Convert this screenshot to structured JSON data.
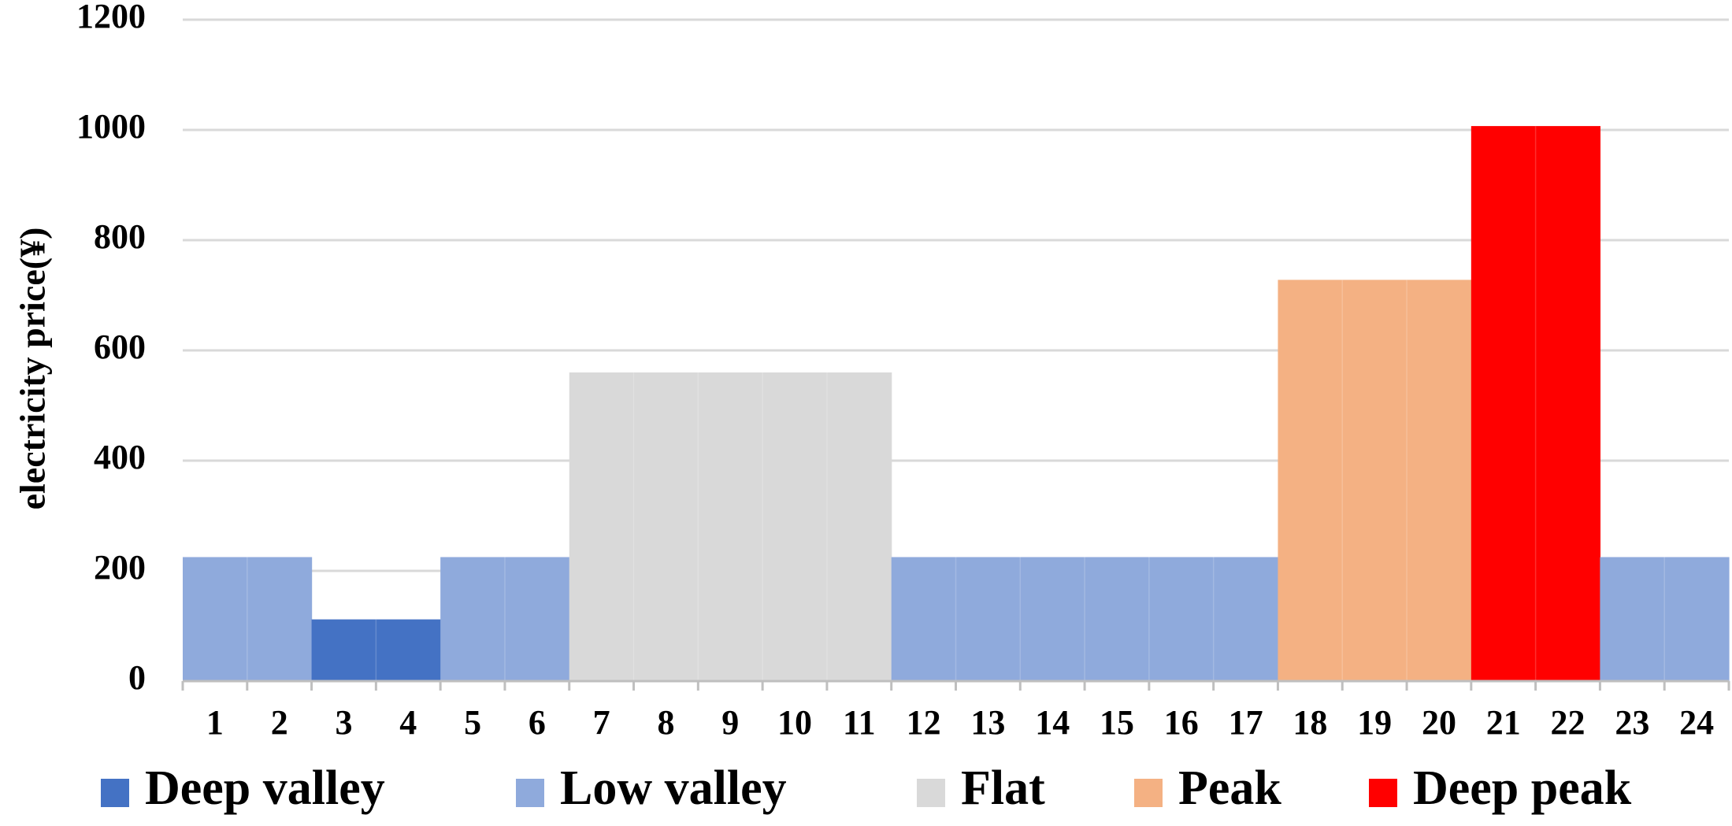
{
  "chart_data": {
    "type": "bar",
    "title": "",
    "xlabel": "",
    "ylabel": "electricity price(¥)",
    "ylim": [
      0,
      1200
    ],
    "yticks": [
      "0",
      "200",
      "400",
      "600",
      "800",
      "1000",
      "1200"
    ],
    "grid": true,
    "categories": [
      "1",
      "2",
      "3",
      "4",
      "5",
      "6",
      "7",
      "8",
      "9",
      "10",
      "11",
      "12",
      "13",
      "14",
      "15",
      "16",
      "17",
      "18",
      "19",
      "20",
      "21",
      "22",
      "23",
      "24"
    ],
    "values": [
      225,
      225,
      112,
      112,
      225,
      225,
      560,
      560,
      560,
      560,
      560,
      225,
      225,
      225,
      225,
      225,
      225,
      728,
      728,
      728,
      1007,
      1007,
      225,
      225
    ],
    "period": [
      "Low valley",
      "Low valley",
      "Deep valley",
      "Deep valley",
      "Low valley",
      "Low valley",
      "Flat",
      "Flat",
      "Flat",
      "Flat",
      "Flat",
      "Low valley",
      "Low valley",
      "Low valley",
      "Low valley",
      "Low valley",
      "Low valley",
      "Peak",
      "Peak",
      "Peak",
      "Deep peak",
      "Deep peak",
      "Low valley",
      "Low valley"
    ],
    "legend": [
      {
        "label": "Deep valley",
        "color": "#4472c4"
      },
      {
        "label": "Low valley",
        "color": "#8faadc"
      },
      {
        "label": "Flat",
        "color": "#d9d9d9"
      },
      {
        "label": "Peak",
        "color": "#f4b183"
      },
      {
        "label": "Deep peak",
        "color": "#ff0000"
      }
    ],
    "legend_position": "bottom",
    "grid_color": "#d9d9d9",
    "axis_color": "#bfbfbf"
  }
}
